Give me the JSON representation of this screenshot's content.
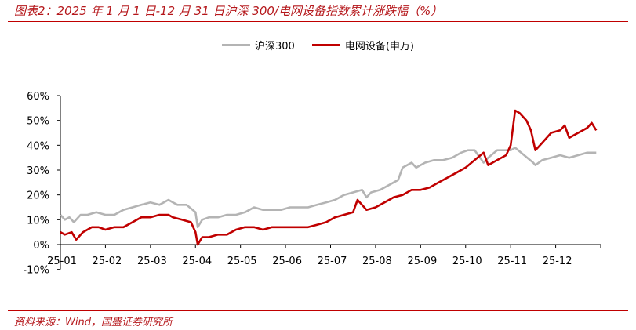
{
  "title": "图表2：2025 年 1 月 1 日-12 月 31 日沪深 300/电网设备指数累计涨跌幅（%）",
  "source": "资料来源：Wind，国盛证券研究所",
  "colors": {
    "hs300": "#b4b4b4",
    "grid": "#c00000",
    "accent": "#b5171b"
  },
  "chart_data": {
    "type": "line",
    "title": "2025 年 1 月 1 日-12 月 31 日沪深 300/电网设备指数累计涨跌幅（%）",
    "xlabel": "",
    "ylabel": "",
    "x_ticks": [
      "25-01",
      "25-02",
      "25-03",
      "25-04",
      "25-05",
      "25-06",
      "25-07",
      "25-08",
      "25-09",
      "25-10",
      "25-11",
      "25-12"
    ],
    "y_ticks": [
      "60%",
      "50%",
      "40%",
      "30%",
      "20%",
      "10%",
      "0%",
      "-10%"
    ],
    "ylim": [
      -10,
      60
    ],
    "legend": "top-center",
    "grid": false,
    "series": [
      {
        "name": "沪深300",
        "color": "#b4b4b4",
        "points": [
          [
            1.0,
            12
          ],
          [
            1.1,
            10
          ],
          [
            1.2,
            11
          ],
          [
            1.3,
            9
          ],
          [
            1.45,
            12
          ],
          [
            1.6,
            12
          ],
          [
            1.8,
            13
          ],
          [
            2.0,
            12
          ],
          [
            2.2,
            12
          ],
          [
            2.4,
            14
          ],
          [
            2.6,
            15
          ],
          [
            2.8,
            16
          ],
          [
            3.0,
            17
          ],
          [
            3.2,
            16
          ],
          [
            3.4,
            18
          ],
          [
            3.5,
            17
          ],
          [
            3.6,
            16
          ],
          [
            3.8,
            16
          ],
          [
            4.0,
            13
          ],
          [
            4.05,
            7
          ],
          [
            4.15,
            10
          ],
          [
            4.3,
            11
          ],
          [
            4.5,
            11
          ],
          [
            4.7,
            12
          ],
          [
            4.9,
            12
          ],
          [
            5.1,
            13
          ],
          [
            5.3,
            15
          ],
          [
            5.5,
            14
          ],
          [
            5.7,
            14
          ],
          [
            5.9,
            14
          ],
          [
            6.1,
            15
          ],
          [
            6.3,
            15
          ],
          [
            6.5,
            15
          ],
          [
            6.7,
            16
          ],
          [
            6.9,
            17
          ],
          [
            7.1,
            18
          ],
          [
            7.3,
            20
          ],
          [
            7.5,
            21
          ],
          [
            7.7,
            22
          ],
          [
            7.8,
            19
          ],
          [
            7.9,
            21
          ],
          [
            8.1,
            22
          ],
          [
            8.3,
            24
          ],
          [
            8.5,
            26
          ],
          [
            8.6,
            31
          ],
          [
            8.8,
            33
          ],
          [
            8.9,
            31
          ],
          [
            9.1,
            33
          ],
          [
            9.3,
            34
          ],
          [
            9.5,
            34
          ],
          [
            9.7,
            35
          ],
          [
            9.9,
            37
          ],
          [
            10.05,
            38
          ],
          [
            10.2,
            38
          ],
          [
            10.4,
            33
          ],
          [
            10.5,
            35
          ],
          [
            10.7,
            38
          ],
          [
            10.9,
            38
          ],
          [
            11.0,
            38
          ],
          [
            11.1,
            39
          ],
          [
            11.3,
            36
          ],
          [
            11.5,
            33
          ],
          [
            11.55,
            32
          ],
          [
            11.7,
            34
          ],
          [
            11.9,
            35
          ],
          [
            12.1,
            36
          ],
          [
            12.3,
            35
          ],
          [
            12.5,
            36
          ],
          [
            12.7,
            37
          ],
          [
            12.9,
            37
          ]
        ]
      },
      {
        "name": "电网设备(申万)",
        "color": "#c00000",
        "points": [
          [
            1.0,
            5
          ],
          [
            1.1,
            4
          ],
          [
            1.25,
            5
          ],
          [
            1.35,
            2
          ],
          [
            1.5,
            5
          ],
          [
            1.7,
            7
          ],
          [
            1.85,
            7
          ],
          [
            2.0,
            6
          ],
          [
            2.2,
            7
          ],
          [
            2.4,
            7
          ],
          [
            2.6,
            9
          ],
          [
            2.8,
            11
          ],
          [
            3.0,
            11
          ],
          [
            3.2,
            12
          ],
          [
            3.4,
            12
          ],
          [
            3.5,
            11
          ],
          [
            3.7,
            10
          ],
          [
            3.9,
            9
          ],
          [
            4.0,
            5
          ],
          [
            4.05,
            0
          ],
          [
            4.15,
            3
          ],
          [
            4.3,
            3
          ],
          [
            4.5,
            4
          ],
          [
            4.7,
            4
          ],
          [
            4.9,
            6
          ],
          [
            5.1,
            7
          ],
          [
            5.3,
            7
          ],
          [
            5.5,
            6
          ],
          [
            5.7,
            7
          ],
          [
            5.9,
            7
          ],
          [
            6.1,
            7
          ],
          [
            6.3,
            7
          ],
          [
            6.5,
            7
          ],
          [
            6.7,
            8
          ],
          [
            6.9,
            9
          ],
          [
            7.1,
            11
          ],
          [
            7.3,
            12
          ],
          [
            7.5,
            13
          ],
          [
            7.6,
            18
          ],
          [
            7.8,
            14
          ],
          [
            8.0,
            15
          ],
          [
            8.2,
            17
          ],
          [
            8.4,
            19
          ],
          [
            8.6,
            20
          ],
          [
            8.8,
            22
          ],
          [
            9.0,
            22
          ],
          [
            9.2,
            23
          ],
          [
            9.4,
            25
          ],
          [
            9.6,
            27
          ],
          [
            9.8,
            29
          ],
          [
            10.0,
            31
          ],
          [
            10.2,
            34
          ],
          [
            10.4,
            37
          ],
          [
            10.5,
            32
          ],
          [
            10.7,
            34
          ],
          [
            10.9,
            36
          ],
          [
            11.0,
            40
          ],
          [
            11.1,
            54
          ],
          [
            11.2,
            53
          ],
          [
            11.35,
            50
          ],
          [
            11.45,
            46
          ],
          [
            11.55,
            38
          ],
          [
            11.7,
            41
          ],
          [
            11.9,
            45
          ],
          [
            12.1,
            46
          ],
          [
            12.2,
            48
          ],
          [
            12.3,
            43
          ],
          [
            12.5,
            45
          ],
          [
            12.7,
            47
          ],
          [
            12.8,
            49
          ],
          [
            12.9,
            46
          ]
        ]
      }
    ]
  }
}
